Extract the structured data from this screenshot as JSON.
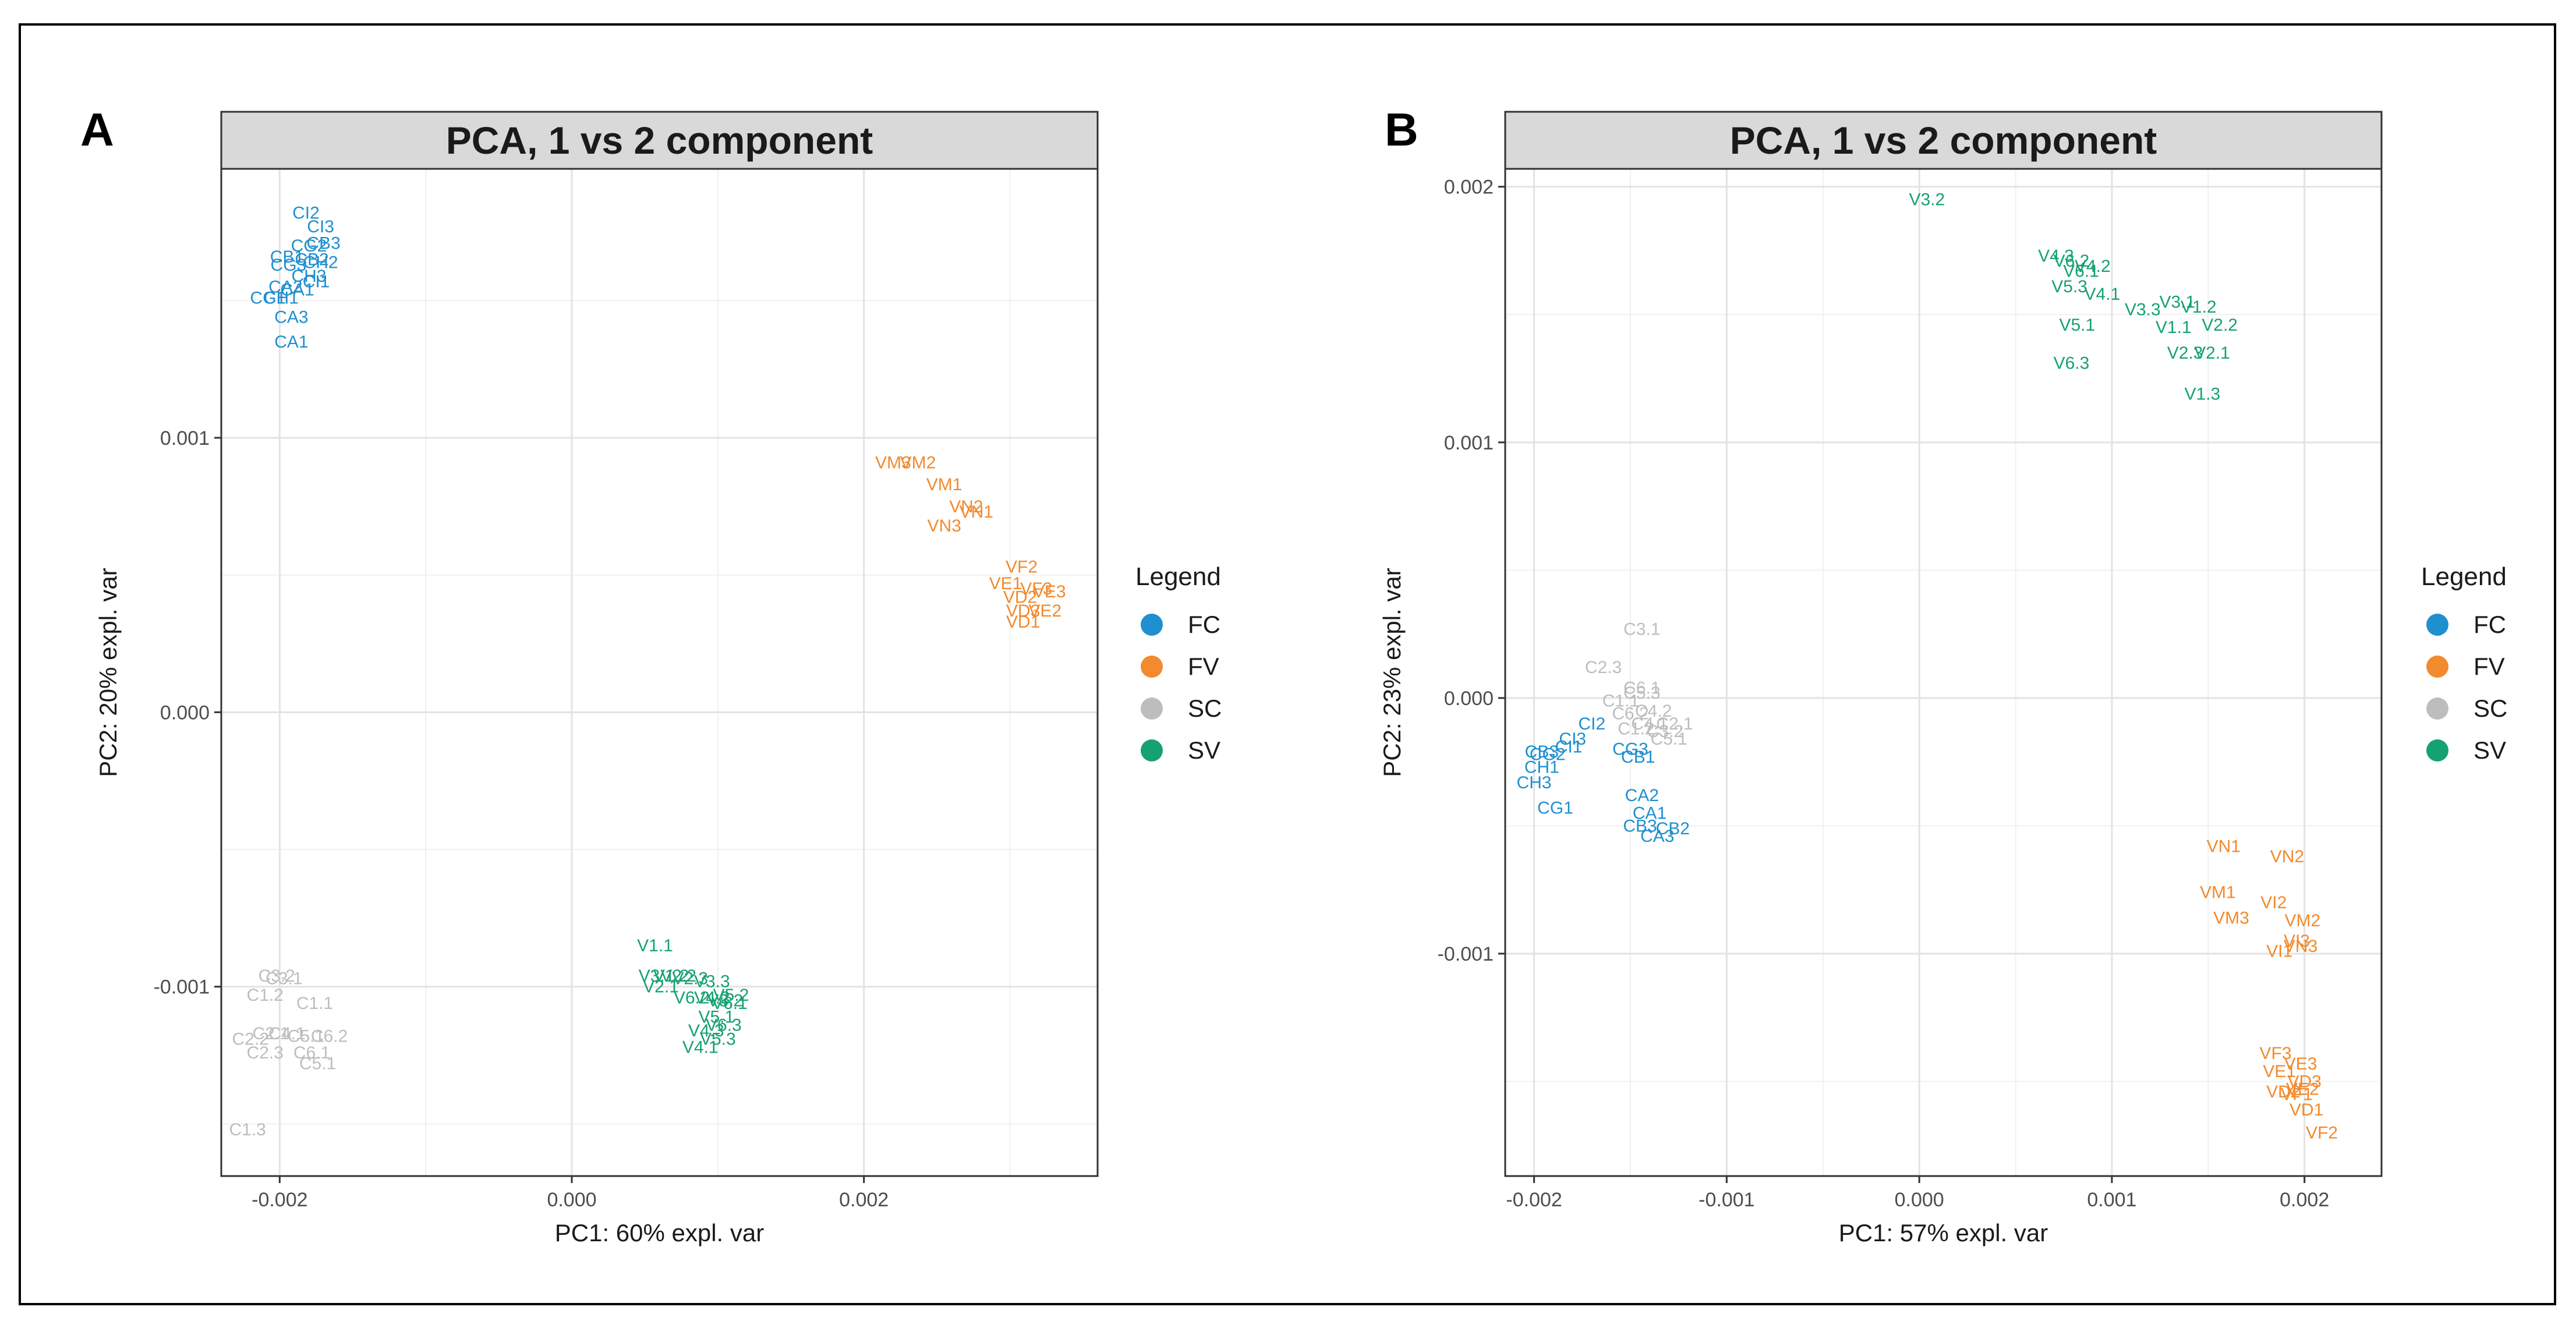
{
  "colors": {
    "FC": "#1f8fcf",
    "FV": "#f28a2e",
    "SC": "#bdbdbd",
    "SV": "#16a172"
  },
  "chart_data": [
    {
      "panel_label": "A",
      "type": "scatter",
      "title": "PCA, 1 vs 2 component",
      "xlabel": "PC1: 60% expl. var",
      "ylabel": "PC2: 20% expl. var",
      "xlim": [
        -0.0024,
        0.0036
      ],
      "ylim": [
        -0.00169,
        0.00198
      ],
      "xticks": [
        -0.002,
        0.0,
        0.002
      ],
      "xtick_labels": [
        "-0.002",
        "0.000",
        "0.002"
      ],
      "yticks": [
        -0.001,
        0.0,
        0.001
      ],
      "ytick_labels": [
        "-0.001",
        "0.000",
        "0.001"
      ],
      "grid": true,
      "legend": {
        "title": "Legend",
        "position": "right",
        "entries": [
          "FC",
          "FV",
          "SC",
          "SV"
        ]
      },
      "series": [
        {
          "name": "FC",
          "points": [
            {
              "label": "CI2",
              "x": -0.00182,
              "y": 0.00182
            },
            {
              "label": "CI3",
              "x": -0.00172,
              "y": 0.00177
            },
            {
              "label": "CB3",
              "x": -0.0017,
              "y": 0.00171
            },
            {
              "label": "CG2",
              "x": -0.0018,
              "y": 0.0017
            },
            {
              "label": "CB2",
              "x": -0.00178,
              "y": 0.00165
            },
            {
              "label": "CH2",
              "x": -0.00172,
              "y": 0.00164
            },
            {
              "label": "CB1",
              "x": -0.00195,
              "y": 0.00166
            },
            {
              "label": "CG3",
              "x": -0.00194,
              "y": 0.00163
            },
            {
              "label": "CH3",
              "x": -0.0018,
              "y": 0.00159
            },
            {
              "label": "CI1",
              "x": -0.00175,
              "y": 0.00157
            },
            {
              "label": "CA2",
              "x": -0.00196,
              "y": 0.00155
            },
            {
              "label": "CA1",
              "x": -0.00188,
              "y": 0.00154
            },
            {
              "label": "CG1",
              "x": -0.00208,
              "y": 0.00151
            },
            {
              "label": "CH1",
              "x": -0.00199,
              "y": 0.00151
            },
            {
              "label": "CA3",
              "x": -0.00192,
              "y": 0.00144
            },
            {
              "label": "CA1",
              "x": -0.00192,
              "y": 0.00135
            }
          ]
        },
        {
          "name": "FV",
          "points": [
            {
              "label": "VM3",
              "x": 0.0022,
              "y": 0.00091
            },
            {
              "label": "VM2",
              "x": 0.00237,
              "y": 0.00091
            },
            {
              "label": "VM1",
              "x": 0.00255,
              "y": 0.00083
            },
            {
              "label": "VN2",
              "x": 0.0027,
              "y": 0.00075
            },
            {
              "label": "VN1",
              "x": 0.00277,
              "y": 0.00073
            },
            {
              "label": "VN3",
              "x": 0.00255,
              "y": 0.00068
            },
            {
              "label": "VF2",
              "x": 0.00308,
              "y": 0.00053
            },
            {
              "label": "VE1",
              "x": 0.00297,
              "y": 0.00047
            },
            {
              "label": "VF3",
              "x": 0.00318,
              "y": 0.00045
            },
            {
              "label": "VE3",
              "x": 0.00327,
              "y": 0.00044
            },
            {
              "label": "VD2",
              "x": 0.00307,
              "y": 0.00042
            },
            {
              "label": "VD3",
              "x": 0.00309,
              "y": 0.00037
            },
            {
              "label": "VE2",
              "x": 0.00324,
              "y": 0.00037
            },
            {
              "label": "VD1",
              "x": 0.00309,
              "y": 0.00033
            }
          ]
        },
        {
          "name": "SC",
          "points": [
            {
              "label": "C3.1",
              "x": -0.00197,
              "y": -0.00097
            },
            {
              "label": "C3.2",
              "x": -0.00202,
              "y": -0.00096
            },
            {
              "label": "C1.2",
              "x": -0.0021,
              "y": -0.00103
            },
            {
              "label": "C1.1",
              "x": -0.00176,
              "y": -0.00106
            },
            {
              "label": "C2.1",
              "x": -0.00206,
              "y": -0.00117
            },
            {
              "label": "C5.1",
              "x": -0.00182,
              "y": -0.00118
            },
            {
              "label": "C6.2",
              "x": -0.00166,
              "y": -0.00118
            },
            {
              "label": "C4.1",
              "x": -0.00195,
              "y": -0.00117
            },
            {
              "label": "C2.2",
              "x": -0.0022,
              "y": -0.00119
            },
            {
              "label": "C2.3",
              "x": -0.0021,
              "y": -0.00124
            },
            {
              "label": "C6.1",
              "x": -0.00178,
              "y": -0.00124
            },
            {
              "label": "C5.1",
              "x": -0.00174,
              "y": -0.00128
            },
            {
              "label": "C1.3",
              "x": -0.00222,
              "y": -0.00152
            }
          ]
        },
        {
          "name": "SV",
          "points": [
            {
              "label": "V1.1",
              "x": 0.00057,
              "y": -0.00085
            },
            {
              "label": "V3.1",
              "x": 0.00058,
              "y": -0.00096
            },
            {
              "label": "V2.2",
              "x": 0.00073,
              "y": -0.00096
            },
            {
              "label": "V1.2",
              "x": 0.00068,
              "y": -0.00096
            },
            {
              "label": "V2.3",
              "x": 0.00081,
              "y": -0.00097
            },
            {
              "label": "V3.3",
              "x": 0.00096,
              "y": -0.00098
            },
            {
              "label": "V2.1",
              "x": 0.00061,
              "y": -0.001
            },
            {
              "label": "V5.2",
              "x": 0.00109,
              "y": -0.00103
            },
            {
              "label": "V3.2",
              "x": 0.00105,
              "y": -0.00105
            },
            {
              "label": "V6.2",
              "x": 0.00082,
              "y": -0.00104
            },
            {
              "label": "V4.2",
              "x": 0.00096,
              "y": -0.00104
            },
            {
              "label": "V6.1",
              "x": 0.00108,
              "y": -0.00106
            },
            {
              "label": "V5.1",
              "x": 0.00099,
              "y": -0.00111
            },
            {
              "label": "V6.3",
              "x": 0.00104,
              "y": -0.00114
            },
            {
              "label": "V5.3",
              "x": 0.001,
              "y": -0.00119
            },
            {
              "label": "V4.3",
              "x": 0.00092,
              "y": -0.00116
            },
            {
              "label": "V4.1",
              "x": 0.00088,
              "y": -0.00122
            }
          ]
        }
      ]
    },
    {
      "panel_label": "B",
      "type": "scatter",
      "title": "PCA, 1 vs 2 component",
      "xlabel": "PC1: 57% expl. var",
      "ylabel": "PC2: 23% expl. var",
      "xlim": [
        -0.00215,
        0.0024
      ],
      "ylim": [
        -0.00187,
        0.00207
      ],
      "xticks": [
        -0.002,
        -0.001,
        0.0,
        0.001,
        0.002
      ],
      "xtick_labels": [
        "-0.002",
        "-0.001",
        "0.000",
        "0.001",
        "0.002"
      ],
      "yticks": [
        -0.001,
        0.0,
        0.001,
        0.002
      ],
      "ytick_labels": [
        "-0.001",
        "0.000",
        "0.001",
        "0.002"
      ],
      "grid": true,
      "legend": {
        "title": "Legend",
        "position": "right",
        "entries": [
          "FC",
          "FV",
          "SC",
          "SV"
        ]
      },
      "series": [
        {
          "name": "FC",
          "points": [
            {
              "label": "CI2",
              "x": -0.0017,
              "y": -0.0001
            },
            {
              "label": "CI3",
              "x": -0.0018,
              "y": -0.00016
            },
            {
              "label": "CB3",
              "x": -0.00196,
              "y": -0.00021
            },
            {
              "label": "CG2",
              "x": -0.00193,
              "y": -0.00022
            },
            {
              "label": "CI1",
              "x": -0.00182,
              "y": -0.00019
            },
            {
              "label": "CH1",
              "x": -0.00196,
              "y": -0.00027
            },
            {
              "label": "CG3",
              "x": -0.0015,
              "y": -0.0002
            },
            {
              "label": "CB1",
              "x": -0.00146,
              "y": -0.00023
            },
            {
              "label": "CH3",
              "x": -0.002,
              "y": -0.00033
            },
            {
              "label": "CG1",
              "x": -0.00189,
              "y": -0.00043
            },
            {
              "label": "CA2",
              "x": -0.00144,
              "y": -0.00038
            },
            {
              "label": "CA1",
              "x": -0.0014,
              "y": -0.00045
            },
            {
              "label": "CB3",
              "x": -0.00145,
              "y": -0.0005
            },
            {
              "label": "CB2",
              "x": -0.00128,
              "y": -0.00051
            },
            {
              "label": "CA3",
              "x": -0.00136,
              "y": -0.00054
            }
          ]
        },
        {
          "name": "FV",
          "points": [
            {
              "label": "VN1",
              "x": 0.00158,
              "y": -0.00058
            },
            {
              "label": "VN2",
              "x": 0.00191,
              "y": -0.00062
            },
            {
              "label": "VM1",
              "x": 0.00155,
              "y": -0.00076
            },
            {
              "label": "VI2",
              "x": 0.00184,
              "y": -0.0008
            },
            {
              "label": "VM3",
              "x": 0.00162,
              "y": -0.00086
            },
            {
              "label": "VM2",
              "x": 0.00199,
              "y": -0.00087
            },
            {
              "label": "VN3",
              "x": 0.00198,
              "y": -0.00097
            },
            {
              "label": "VI3",
              "x": 0.00196,
              "y": -0.00095
            },
            {
              "label": "VI1",
              "x": 0.00187,
              "y": -0.00099
            },
            {
              "label": "VF3",
              "x": 0.00185,
              "y": -0.00139
            },
            {
              "label": "VE3",
              "x": 0.00198,
              "y": -0.00143
            },
            {
              "label": "VE1",
              "x": 0.00187,
              "y": -0.00146
            },
            {
              "label": "VD3",
              "x": 0.002,
              "y": -0.0015
            },
            {
              "label": "VD2",
              "x": 0.00189,
              "y": -0.00154
            },
            {
              "label": "VE2",
              "x": 0.00199,
              "y": -0.00153
            },
            {
              "label": "VF1",
              "x": 0.00196,
              "y": -0.00155
            },
            {
              "label": "VD1",
              "x": 0.00201,
              "y": -0.00161
            },
            {
              "label": "VF2",
              "x": 0.00209,
              "y": -0.0017
            }
          ]
        },
        {
          "name": "SC",
          "points": [
            {
              "label": "C3.1",
              "x": -0.00144,
              "y": 0.00027
            },
            {
              "label": "C2.3",
              "x": -0.00164,
              "y": 0.00012
            },
            {
              "label": "C6.1",
              "x": -0.00144,
              "y": 4e-05
            },
            {
              "label": "C5.3",
              "x": -0.00144,
              "y": 2e-05
            },
            {
              "label": "C1.1",
              "x": -0.00155,
              "y": -1e-05
            },
            {
              "label": "C4.2",
              "x": -0.00138,
              "y": -5e-05
            },
            {
              "label": "C6.2",
              "x": -0.0015,
              "y": -6e-05
            },
            {
              "label": "C4.1",
              "x": -0.0014,
              "y": -0.0001
            },
            {
              "label": "C2.1",
              "x": -0.00127,
              "y": -0.0001
            },
            {
              "label": "C1.2",
              "x": -0.00147,
              "y": -0.00012
            },
            {
              "label": "C3.2",
              "x": -0.00132,
              "y": -0.00013
            },
            {
              "label": "C5.1",
              "x": -0.0013,
              "y": -0.00016
            }
          ]
        },
        {
          "name": "SV",
          "points": [
            {
              "label": "V3.2",
              "x": 4e-05,
              "y": 0.00195
            },
            {
              "label": "V4.3",
              "x": 0.00071,
              "y": 0.00173
            },
            {
              "label": "V6.2",
              "x": 0.00079,
              "y": 0.00171
            },
            {
              "label": "V4.2",
              "x": 0.0009,
              "y": 0.00169
            },
            {
              "label": "V6.1",
              "x": 0.00084,
              "y": 0.00167
            },
            {
              "label": "V5.3",
              "x": 0.00078,
              "y": 0.00161
            },
            {
              "label": "V4.1",
              "x": 0.00095,
              "y": 0.00158
            },
            {
              "label": "V3.3",
              "x": 0.00116,
              "y": 0.00152
            },
            {
              "label": "V3.1",
              "x": 0.00134,
              "y": 0.00155
            },
            {
              "label": "V1.2",
              "x": 0.00145,
              "y": 0.00153
            },
            {
              "label": "V5.1",
              "x": 0.00082,
              "y": 0.00146
            },
            {
              "label": "V1.1",
              "x": 0.00132,
              "y": 0.00145
            },
            {
              "label": "V2.2",
              "x": 0.00156,
              "y": 0.00146
            },
            {
              "label": "V2.3",
              "x": 0.00138,
              "y": 0.00135
            },
            {
              "label": "V2.1",
              "x": 0.00152,
              "y": 0.00135
            },
            {
              "label": "V6.3",
              "x": 0.00079,
              "y": 0.00131
            },
            {
              "label": "V1.3",
              "x": 0.00147,
              "y": 0.00119
            }
          ]
        }
      ]
    }
  ]
}
